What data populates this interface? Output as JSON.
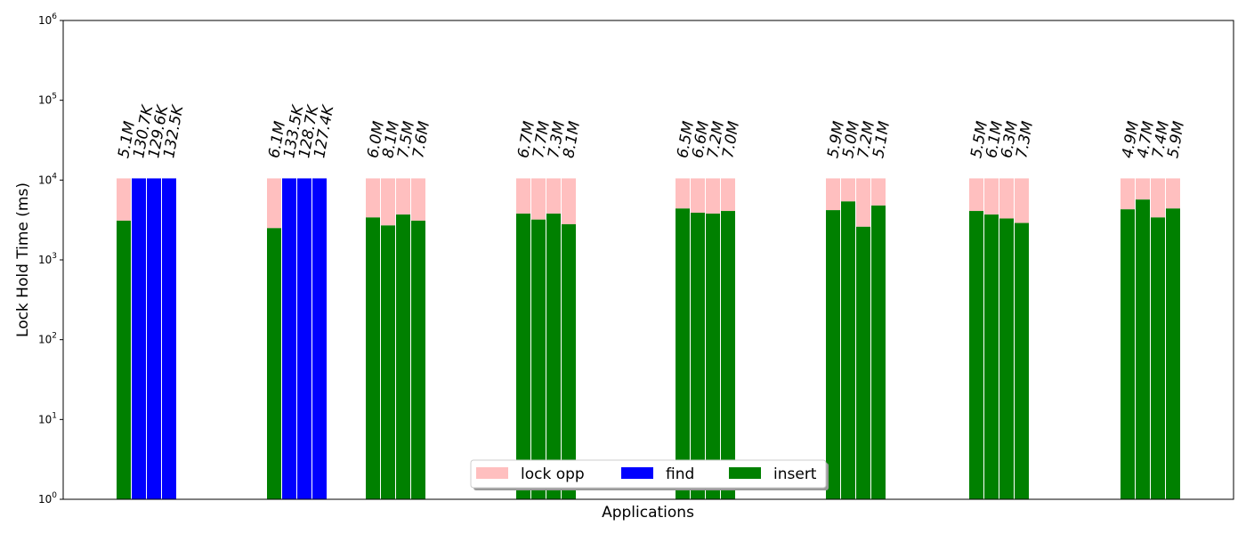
{
  "chart_data": {
    "type": "bar",
    "stacked": true,
    "xlabel": "Applications",
    "ylabel": "Lock Hold Time (ms)",
    "y_scale": "log",
    "ylim": [
      1,
      1000000
    ],
    "y_ticks": [
      {
        "value": 1,
        "base": "10",
        "exp": "0"
      },
      {
        "value": 10,
        "base": "10",
        "exp": "1"
      },
      {
        "value": 100,
        "base": "10",
        "exp": "2"
      },
      {
        "value": 1000,
        "base": "10",
        "exp": "3"
      },
      {
        "value": 10000,
        "base": "10",
        "exp": "4"
      },
      {
        "value": 100000,
        "base": "10",
        "exp": "5"
      },
      {
        "value": 1000000,
        "base": "10",
        "exp": "6"
      }
    ],
    "grid": false,
    "legend": {
      "position": "bottom-center",
      "entries": [
        {
          "name": "lock opp",
          "color": "#ffbfbf"
        },
        {
          "name": "find",
          "color": "#0000ff"
        },
        {
          "name": "insert",
          "color": "#008000"
        }
      ]
    },
    "bar_total": 10500,
    "groups": [
      {
        "bars": [
          {
            "series": "insert",
            "value": 3100,
            "label": "5.1M"
          },
          {
            "series": "find",
            "value": 10500,
            "label": "130.7K"
          },
          {
            "series": "find",
            "value": 10500,
            "label": "129.6K"
          },
          {
            "series": "find",
            "value": 10500,
            "label": "132.5K"
          }
        ]
      },
      {
        "bars": [
          {
            "series": "insert",
            "value": 2500,
            "label": "6.1M"
          },
          {
            "series": "find",
            "value": 10500,
            "label": "133.5K"
          },
          {
            "series": "find",
            "value": 10500,
            "label": "128.7K"
          },
          {
            "series": "find",
            "value": 10500,
            "label": "127.4K"
          }
        ]
      },
      {
        "bars": [
          {
            "series": "insert",
            "value": 3400,
            "label": "6.0M"
          },
          {
            "series": "insert",
            "value": 2700,
            "label": "8.1M"
          },
          {
            "series": "insert",
            "value": 3700,
            "label": "7.5M"
          },
          {
            "series": "insert",
            "value": 3100,
            "label": "7.6M"
          }
        ]
      },
      {
        "bars": [
          {
            "series": "insert",
            "value": 3800,
            "label": "6.7M"
          },
          {
            "series": "insert",
            "value": 3200,
            "label": "7.7M"
          },
          {
            "series": "insert",
            "value": 3800,
            "label": "7.3M"
          },
          {
            "series": "insert",
            "value": 2800,
            "label": "8.1M"
          }
        ]
      },
      {
        "bars": [
          {
            "series": "insert",
            "value": 4400,
            "label": "6.5M"
          },
          {
            "series": "insert",
            "value": 3900,
            "label": "6.6M"
          },
          {
            "series": "insert",
            "value": 3800,
            "label": "7.2M"
          },
          {
            "series": "insert",
            "value": 4100,
            "label": "7.0M"
          }
        ]
      },
      {
        "bars": [
          {
            "series": "insert",
            "value": 4200,
            "label": "5.9M"
          },
          {
            "series": "insert",
            "value": 5400,
            "label": "5.0M"
          },
          {
            "series": "insert",
            "value": 2600,
            "label": "7.2M"
          },
          {
            "series": "insert",
            "value": 4800,
            "label": "5.1M"
          }
        ]
      },
      {
        "bars": [
          {
            "series": "insert",
            "value": 4100,
            "label": "5.5M"
          },
          {
            "series": "insert",
            "value": 3700,
            "label": "6.1M"
          },
          {
            "series": "insert",
            "value": 3300,
            "label": "6.3M"
          },
          {
            "series": "insert",
            "value": 2900,
            "label": "7.3M"
          }
        ]
      },
      {
        "bars": [
          {
            "series": "insert",
            "value": 4300,
            "label": "4.9M"
          },
          {
            "series": "insert",
            "value": 5700,
            "label": "4.7M"
          },
          {
            "series": "insert",
            "value": 3400,
            "label": "7.4M"
          },
          {
            "series": "insert",
            "value": 4400,
            "label": "5.9M"
          }
        ]
      }
    ]
  }
}
